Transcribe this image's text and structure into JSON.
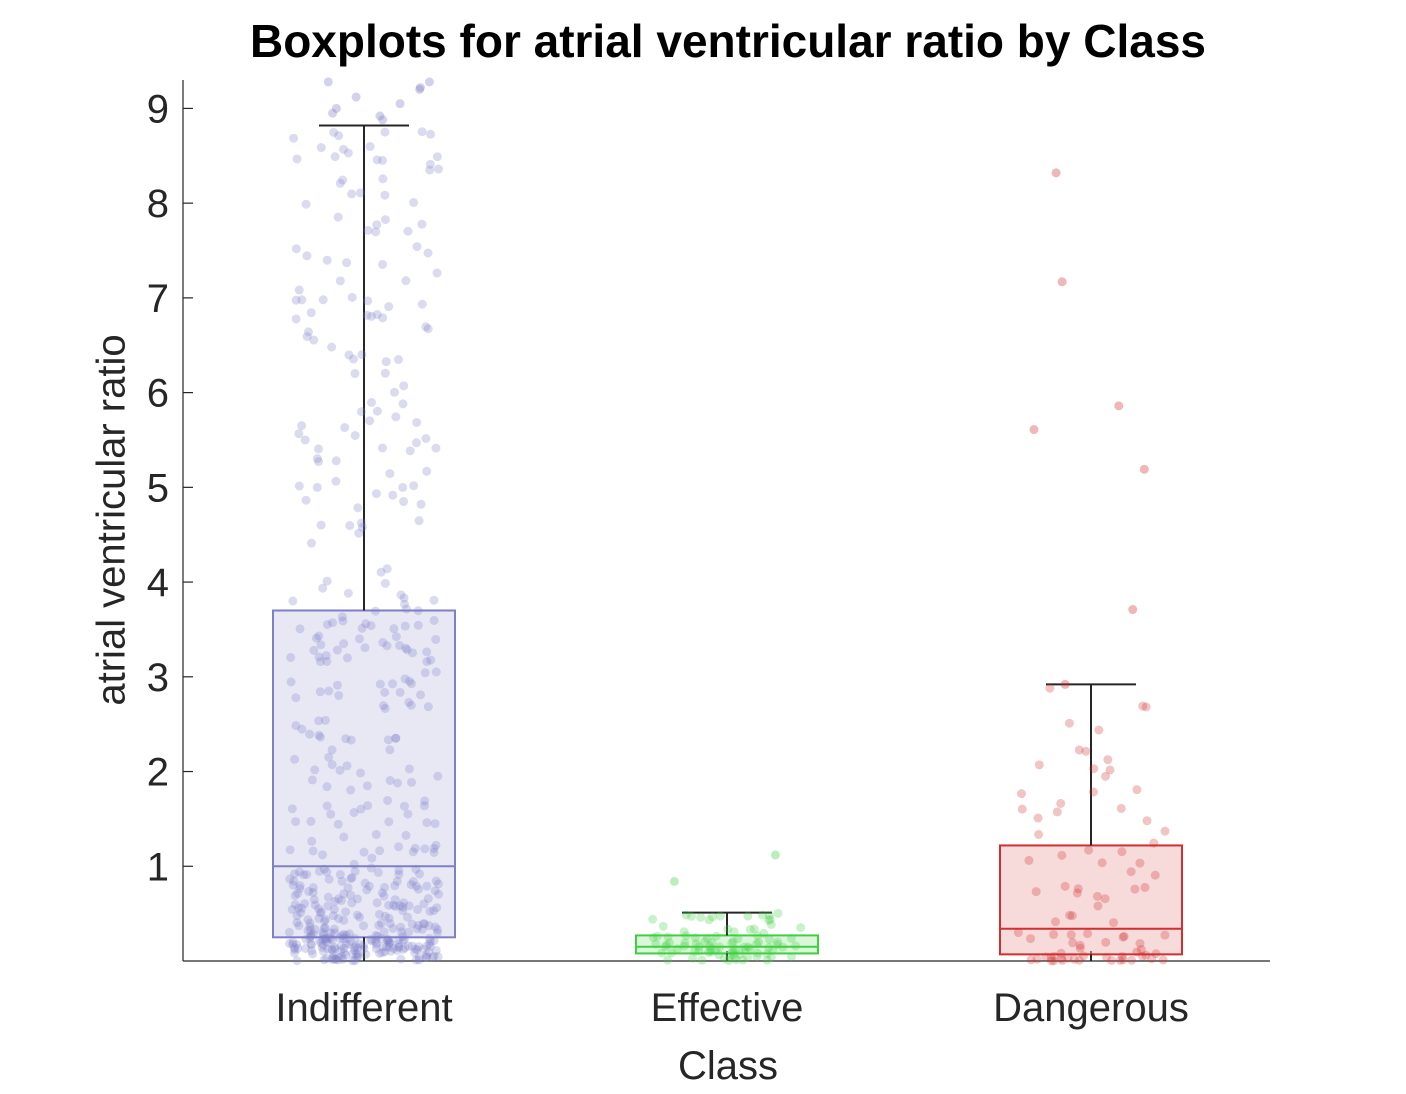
{
  "chart_data": {
    "type": "box",
    "title": "Boxplots for atrial ventricular ratio by Class",
    "xlabel": "Class",
    "ylabel": "atrial ventricular ratio",
    "ylim": [
      0,
      9.3
    ],
    "yticks": [
      1,
      2,
      3,
      4,
      5,
      6,
      7,
      8,
      9
    ],
    "grid": false,
    "categories": [
      "Indifferent",
      "Effective",
      "Dangerous"
    ],
    "boxes": [
      {
        "category": "Indifferent",
        "q1": 0.25,
        "median": 1.0,
        "q3": 3.7,
        "whisker_low": 0.0,
        "whisker_high": 8.82,
        "color": "#7f7fc8",
        "n_points": 520,
        "outliers": [
          9.28,
          9.22,
          9.28,
          9.12,
          9.05,
          9.0,
          8.95,
          8.92,
          8.88,
          9.2
        ]
      },
      {
        "category": "Effective",
        "q1": 0.08,
        "median": 0.15,
        "q3": 0.27,
        "whisker_low": 0.0,
        "whisker_high": 0.51,
        "color": "#3fcf3f",
        "n_points": 90,
        "outliers": [
          1.12,
          0.84
        ]
      },
      {
        "category": "Dangerous",
        "q1": 0.07,
        "median": 0.34,
        "q3": 1.22,
        "whisker_low": 0.0,
        "whisker_high": 2.92,
        "color": "#d03030",
        "n_points": 85,
        "outliers": [
          8.32,
          7.17,
          5.86,
          5.61,
          5.19,
          3.71,
          2.92
        ]
      }
    ]
  }
}
